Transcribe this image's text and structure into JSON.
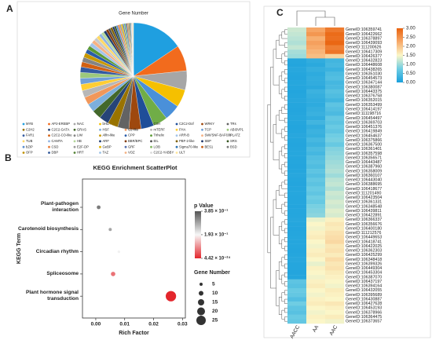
{
  "chart_data": [
    {
      "type": "pie",
      "panel": "A",
      "title": "Gene Number",
      "categories": [
        "MYB",
        "AP2-EREBP",
        "NAC",
        "bHLH",
        "MADS",
        "C3H",
        "C2C2-Dof",
        "WRKY",
        "TRs",
        "C2H2",
        "C2C2-GATA",
        "GRAS",
        "HSF",
        "G2-like",
        "mTERF",
        "FHA",
        "TCP",
        "ABI3VP1",
        "FAR1",
        "C2C2-CO-like",
        "LIM",
        "Alfin-like",
        "CPP",
        "Trihelix",
        "ARR-B",
        "SWI/SNF-BAF60b",
        "PLATZ",
        "TUB",
        "CAMTA",
        "HB",
        "ARF",
        "BBR/BPC",
        "EIL",
        "PBF-2-like",
        "SBP",
        "SRS",
        "bZIP",
        "CSD",
        "E2F-DP",
        "GeBP",
        "GRF",
        "LOB",
        "Sigma70-like",
        "BES1",
        "BSD",
        "OFP",
        "DBP",
        "HRT",
        "TAZ",
        "VOZ",
        "C2C2-YABBY",
        "ULT"
      ],
      "values": [
        16,
        8,
        6,
        5.5,
        5,
        4.5,
        4,
        3.8,
        3.5,
        3.2,
        3,
        2.8,
        2.6,
        2.4,
        2.2,
        2,
        1.9,
        1.8,
        1.7,
        1.6,
        1.5,
        1.4,
        1.3,
        1.2,
        1.2,
        1.1,
        1,
        1,
        0.9,
        0.9,
        0.8,
        0.8,
        0.7,
        0.7,
        0.6,
        0.6,
        0.6,
        0.5,
        0.5,
        0.5,
        0.4,
        0.4,
        0.4,
        0.3,
        0.3,
        0.3,
        0.3,
        0.2,
        0.2,
        0.2,
        0.2,
        0.2
      ],
      "colors": [
        "#1f9fe0",
        "#f26b1d",
        "#a6a6a6",
        "#f5c000",
        "#4a90d9",
        "#70ad47",
        "#1f4e99",
        "#9e480e",
        "#636363",
        "#997300",
        "#264478",
        "#43682b",
        "#7cafdd",
        "#f1975a",
        "#b7b7b7",
        "#ffcd33",
        "#6f9fd8",
        "#9cc97c",
        "#335aa1",
        "#d26012",
        "#848484",
        "#c89800",
        "#2a5ca8",
        "#5b9a34",
        "#a3c4ea",
        "#f6b183",
        "#c9c9c9",
        "#ffd966",
        "#8fb4e3",
        "#b4d79a",
        "#1c3a6e",
        "#843c0c",
        "#4d4d4d",
        "#7f6000",
        "#1a3266",
        "#375623",
        "#5d8fd0",
        "#e97d3a",
        "#999999",
        "#e0b100",
        "#5470b0",
        "#82b65f",
        "#2e75b6",
        "#c55a11",
        "#7b7b7b",
        "#bf9000",
        "#2f5597",
        "#548235",
        "#9dc3e6",
        "#f4b183",
        "#dbdbdb",
        "#ffe699"
      ]
    },
    {
      "type": "scatter",
      "panel": "B",
      "title": "KEGG Enrichment ScatterPlot",
      "xlabel": "Rich Factor",
      "ylabel": "KEGG Term",
      "categories": [
        "Plant-pathogen interaction",
        "Carotenoid biosynthesis",
        "Circadian rhythm",
        "Spliceosome",
        "Plant hormone signal transduction"
      ],
      "values": [
        0.001,
        0.005,
        0.008,
        0.006,
        0.026
      ],
      "gene_numbers": [
        7,
        5,
        3,
        9,
        28
      ],
      "pvalues": [
        0.34,
        0.29,
        0.2,
        0.07,
        4.42e-24
      ],
      "xlim": [
        -0.0046,
        0.031
      ],
      "xticks": [
        {
          "value": 0,
          "label": "0.00"
        },
        0.01,
        0.02,
        0.03
      ],
      "color_legend_title": "p Value",
      "plim": [
        4.42e-24,
        0.385
      ],
      "pticks": [
        {
          "value": 0.385,
          "label": "3.85 × 10⁻¹"
        },
        {
          "value": 0.193,
          "label": "1.93 × 10⁻¹"
        },
        {
          "value": 4.42e-24,
          "label": "4.42 × 10⁻²⁴"
        }
      ],
      "pcolors": [
        "#e3262c",
        "#f7f7f7",
        "#555555"
      ],
      "size_legend_title": "Gene Number",
      "size_ticks": [
        5,
        10,
        15,
        20,
        25
      ]
    },
    {
      "type": "heatmap",
      "panel": "C",
      "columns": [
        "AACC",
        "AA",
        "AAC"
      ],
      "rows": [
        "GeneID:106359741",
        "GeneID:106422662",
        "GeneID:106378897",
        "GeneID:106439093",
        "GeneID:111200626",
        "GeneID:106417309",
        "GeneID:106426377",
        "GeneID:106432823",
        "GeneID:106448608",
        "GeneID:106438265",
        "GeneID:106351030",
        "GeneID:106454573",
        "GeneID:106347144",
        "GeneID:106380087",
        "GeneID:106443375",
        "GeneID:106376758",
        "GeneID:106352015",
        "GeneID:106353499",
        "GeneID:106414197",
        "GeneID:111198716",
        "GeneID:106454497",
        "GeneID:106369703",
        "GeneID:106451376",
        "GeneID:106419849",
        "GeneID:106454637",
        "GeneID:106375866",
        "GeneID:106367500",
        "GeneID:106361401",
        "GeneID:106357598",
        "GeneID:106356571",
        "GeneID:106443487",
        "GeneID:106387960",
        "GeneID:106358009",
        "GeneID:106360107",
        "GeneID:106443040",
        "GeneID:106388695",
        "GeneID:106418677",
        "GeneID:111201490",
        "GeneID:106423504",
        "GeneID:106361331",
        "GeneID:106348548",
        "GeneID:106439811",
        "GeneID:106422891",
        "GeneID:106366337",
        "GeneID:106356676",
        "GeneID:106400180",
        "GeneID:111212576",
        "GeneID:106449653",
        "GeneID:106418741",
        "GeneID:106422025",
        "GeneID:106362303",
        "GeneID:106425299",
        "GeneID:106348418",
        "GeneID:106399326",
        "GeneID:106449304",
        "GeneID:106453304",
        "GeneID:106387070",
        "GeneID:106437197",
        "GeneID:106394164",
        "GeneID:106432055",
        "GeneID:106395689",
        "GeneID:106430887",
        "GeneID:106427628",
        "GeneID:106453193",
        "GeneID:106378966",
        "GeneID:106364475",
        "GeneID:106373657"
      ],
      "values": [
        [
          1.25,
          2.3,
          2.75
        ],
        [
          1.2,
          2.45,
          2.9
        ],
        [
          1.15,
          2.2,
          2.85
        ],
        [
          1.1,
          2.35,
          2.95
        ],
        [
          1.2,
          2.25,
          2.7
        ],
        [
          1.05,
          2.15,
          2.8
        ],
        [
          1.0,
          2.05,
          1.85
        ],
        [
          0.1,
          0.2,
          0.35
        ],
        [
          0.08,
          0.15,
          0.4
        ],
        [
          0.12,
          0.25,
          0.3
        ],
        [
          0.1,
          0.18,
          0.45
        ],
        [
          0.09,
          0.22,
          0.5
        ],
        [
          0.11,
          0.2,
          0.38
        ],
        [
          0.1,
          0.15,
          0.42
        ],
        [
          0.08,
          0.3,
          0.55
        ],
        [
          0.1,
          0.25,
          0.48
        ],
        [
          0.12,
          0.2,
          0.36
        ],
        [
          0.1,
          0.18,
          0.6
        ],
        [
          0.09,
          0.24,
          0.52
        ],
        [
          0.1,
          0.28,
          0.44
        ],
        [
          0.11,
          0.2,
          0.65
        ],
        [
          0.1,
          0.35,
          0.58
        ],
        [
          0.08,
          0.22,
          0.7
        ],
        [
          0.1,
          0.3,
          0.62
        ],
        [
          0.12,
          0.26,
          0.75
        ],
        [
          0.1,
          0.4,
          0.8
        ],
        [
          0.09,
          0.32,
          0.68
        ],
        [
          0.1,
          0.45,
          0.85
        ],
        [
          0.11,
          0.38,
          0.9
        ],
        [
          0.1,
          0.5,
          0.95
        ],
        [
          0.1,
          0.55,
          1.0
        ],
        [
          0.09,
          0.48,
          1.05
        ],
        [
          0.1,
          0.6,
          1.1
        ],
        [
          0.12,
          0.52,
          1.0
        ],
        [
          0.1,
          0.65,
          1.15
        ],
        [
          0.09,
          0.58,
          1.2
        ],
        [
          0.1,
          0.7,
          1.1
        ],
        [
          0.11,
          0.62,
          1.25
        ],
        [
          0.1,
          0.75,
          1.2
        ],
        [
          0.1,
          0.68,
          1.3
        ],
        [
          0.09,
          0.8,
          1.25
        ],
        [
          0.1,
          0.85,
          1.35
        ],
        [
          0.1,
          0.9,
          1.3
        ],
        [
          0.12,
          1.4,
          1.55
        ],
        [
          0.1,
          1.5,
          1.65
        ],
        [
          0.09,
          1.45,
          1.6
        ],
        [
          0.1,
          1.55,
          1.7
        ],
        [
          0.11,
          1.6,
          1.75
        ],
        [
          0.1,
          1.5,
          1.8
        ],
        [
          0.1,
          1.45,
          1.65
        ],
        [
          0.09,
          1.55,
          1.7
        ],
        [
          0.1,
          1.6,
          1.6
        ],
        [
          0.12,
          1.5,
          1.75
        ],
        [
          0.1,
          1.4,
          1.65
        ],
        [
          0.1,
          1.55,
          1.7
        ],
        [
          0.09,
          1.5,
          1.6
        ],
        [
          0.1,
          1.45,
          1.55
        ],
        [
          0.6,
          1.55,
          1.5
        ],
        [
          0.55,
          1.6,
          1.45
        ],
        [
          0.7,
          1.5,
          1.6
        ],
        [
          0.65,
          1.45,
          1.55
        ],
        [
          0.5,
          1.55,
          1.5
        ],
        [
          0.75,
          1.6,
          1.65
        ],
        [
          0.6,
          1.5,
          1.55
        ],
        [
          0.55,
          1.45,
          1.5
        ],
        [
          0.7,
          1.55,
          1.6
        ],
        [
          0.65,
          1.5,
          1.45
        ]
      ],
      "zlim": [
        0,
        3
      ],
      "zticks": [
        {
          "value": 0,
          "label": "0.00"
        },
        {
          "value": 0.5,
          "label": "0.50"
        },
        {
          "value": 1,
          "label": "1.00"
        },
        {
          "value": 1.5,
          "label": "1.50"
        },
        {
          "value": 2,
          "label": "2.00"
        },
        {
          "value": 2.5,
          "label": "2.50"
        },
        {
          "value": 3,
          "label": "3.00"
        }
      ],
      "colorscale": [
        "#1aa0dc",
        "#6fcde3",
        "#fbf6c8",
        "#f7aa6a",
        "#e9620e"
      ]
    }
  ]
}
